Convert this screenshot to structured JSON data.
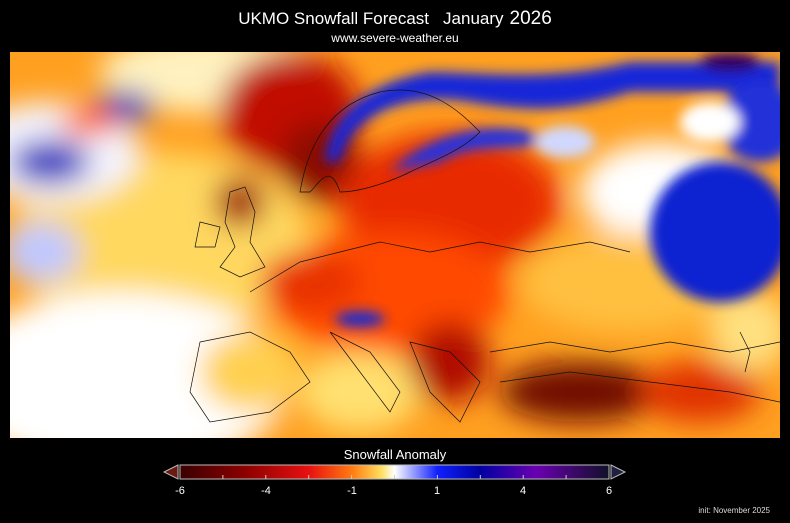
{
  "header": {
    "title": "UKMO Snowfall Forecast",
    "month": "January",
    "year": "2026",
    "website": "www.severe-weather.eu"
  },
  "map": {
    "variable": "Snowfall Anomaly",
    "region": "Europe",
    "overlays": [
      "coastlines",
      "country-borders"
    ]
  },
  "colorbar": {
    "title": "Snowfall Anomaly",
    "ticks": [
      "-6",
      "-4",
      "-1",
      "1",
      "4",
      "6"
    ],
    "range": [
      -6,
      6
    ],
    "colors": [
      "#3a0000",
      "#8b0000",
      "#e81010",
      "#ff7a10",
      "#ffe060",
      "#ffffff",
      "#1020ff",
      "#0000a0",
      "#6a00b0",
      "#1a1030"
    ],
    "extend": "both"
  },
  "footer": {
    "init": "init: November 2025"
  }
}
